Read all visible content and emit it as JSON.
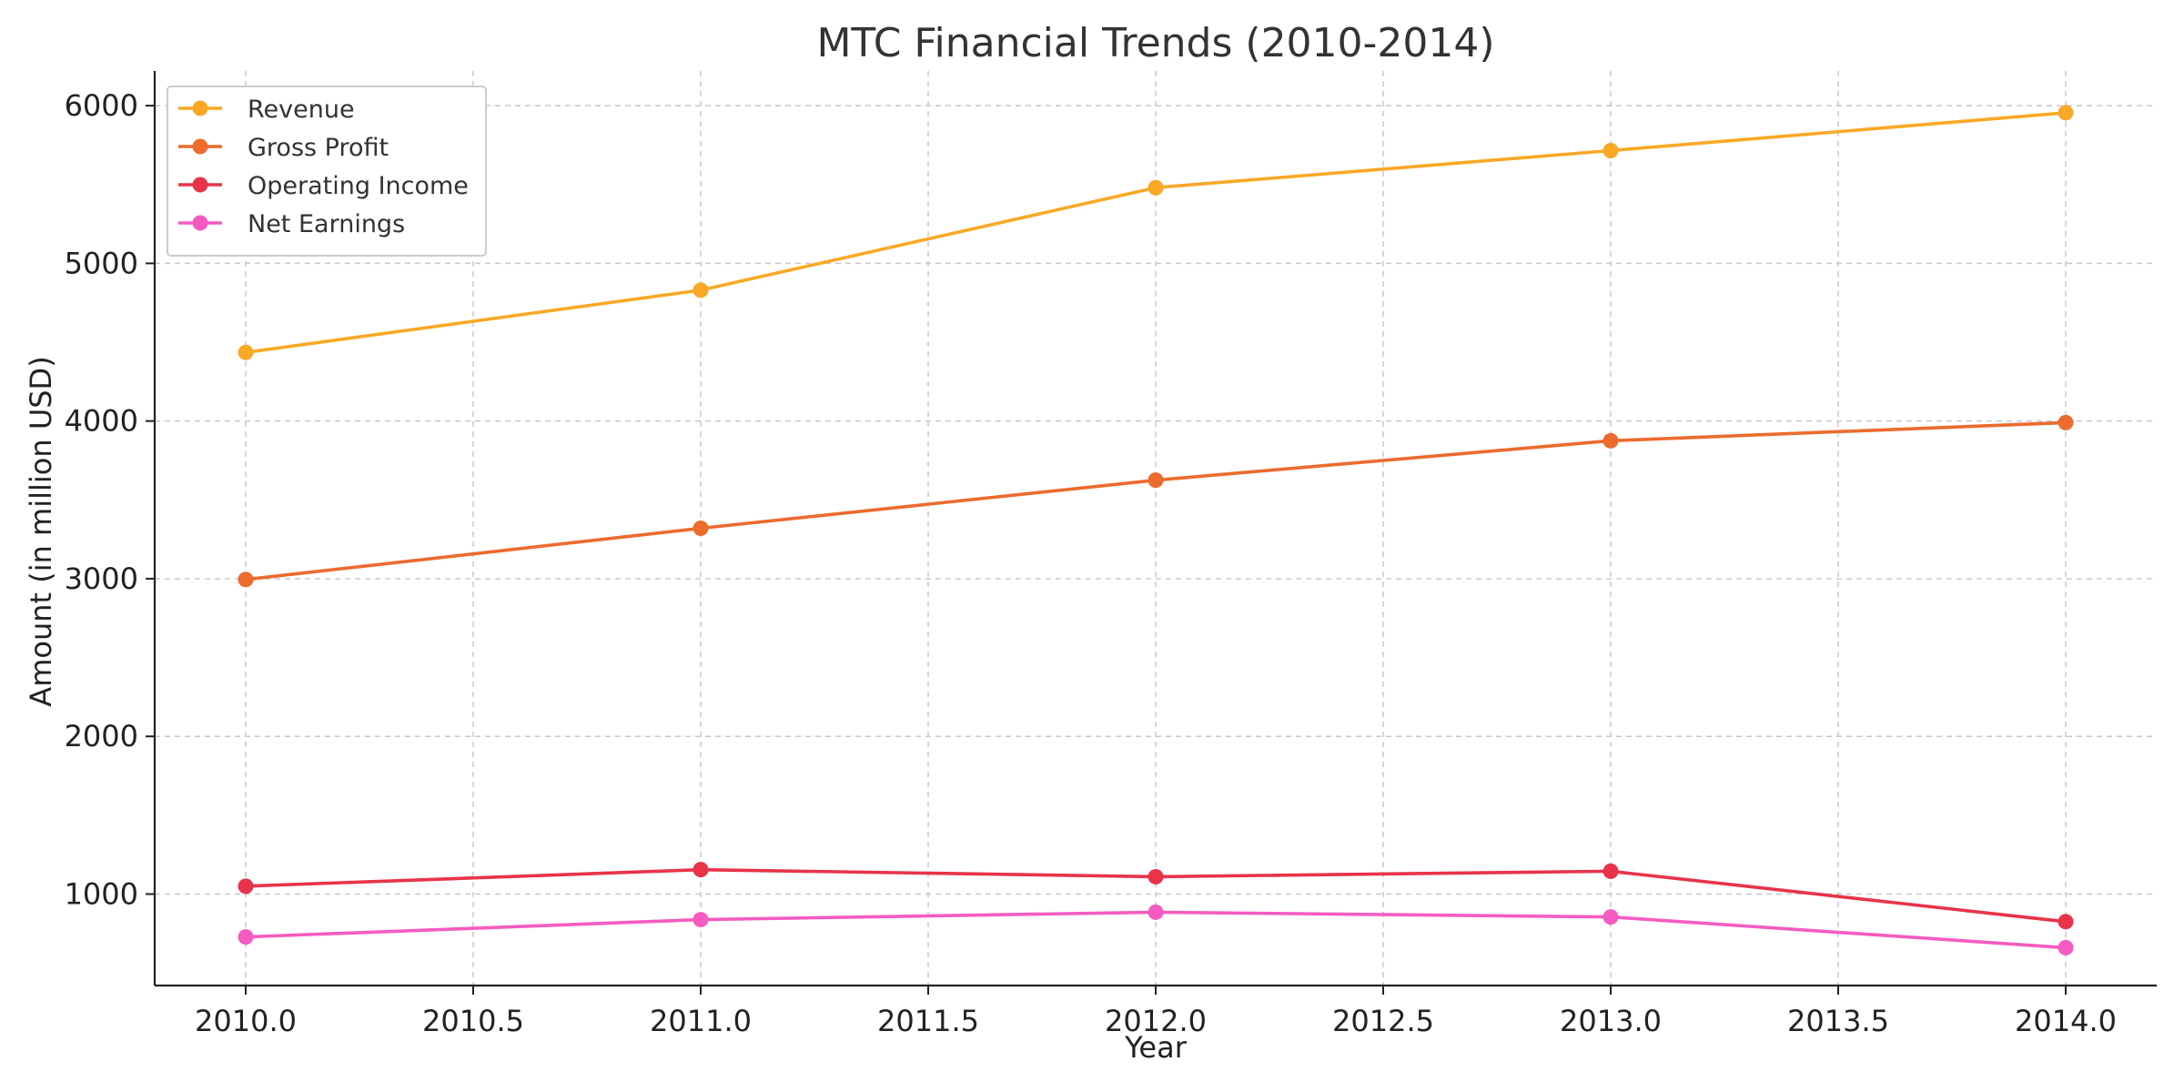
{
  "chart_data": {
    "type": "line",
    "title": "MTC Financial Trends (2010-2014)",
    "xlabel": "Year",
    "ylabel": "Amount (in million USD)",
    "x": [
      2010,
      2011,
      2012,
      2013,
      2014
    ],
    "xlim": [
      2009.8,
      2014.2
    ],
    "ylim": [
      420,
      6220
    ],
    "x_ticks": [
      2010.0,
      2010.5,
      2011.0,
      2011.5,
      2012.0,
      2012.5,
      2013.0,
      2013.5,
      2014.0
    ],
    "x_tick_labels": [
      "2010.0",
      "2010.5",
      "2011.0",
      "2011.5",
      "2012.0",
      "2012.5",
      "2013.0",
      "2013.5",
      "2014.0"
    ],
    "y_ticks": [
      1000,
      2000,
      3000,
      4000,
      5000,
      6000
    ],
    "y_tick_labels": [
      "1000",
      "2000",
      "3000",
      "4000",
      "5000",
      "6000"
    ],
    "grid": true,
    "legend_position": "top-left",
    "series": [
      {
        "name": "Revenue",
        "color": "#f9a825",
        "values": [
          4435,
          4830,
          5480,
          5715,
          5955
        ]
      },
      {
        "name": "Gross Profit",
        "color": "#ec6b2d",
        "values": [
          2995,
          3320,
          3625,
          3875,
          3990
        ]
      },
      {
        "name": "Operating Income",
        "color": "#e8334a",
        "values": [
          1050,
          1155,
          1110,
          1145,
          825
        ]
      },
      {
        "name": "Net Earnings",
        "color": "#f55bc0",
        "values": [
          728,
          838,
          885,
          855,
          660
        ]
      }
    ]
  }
}
